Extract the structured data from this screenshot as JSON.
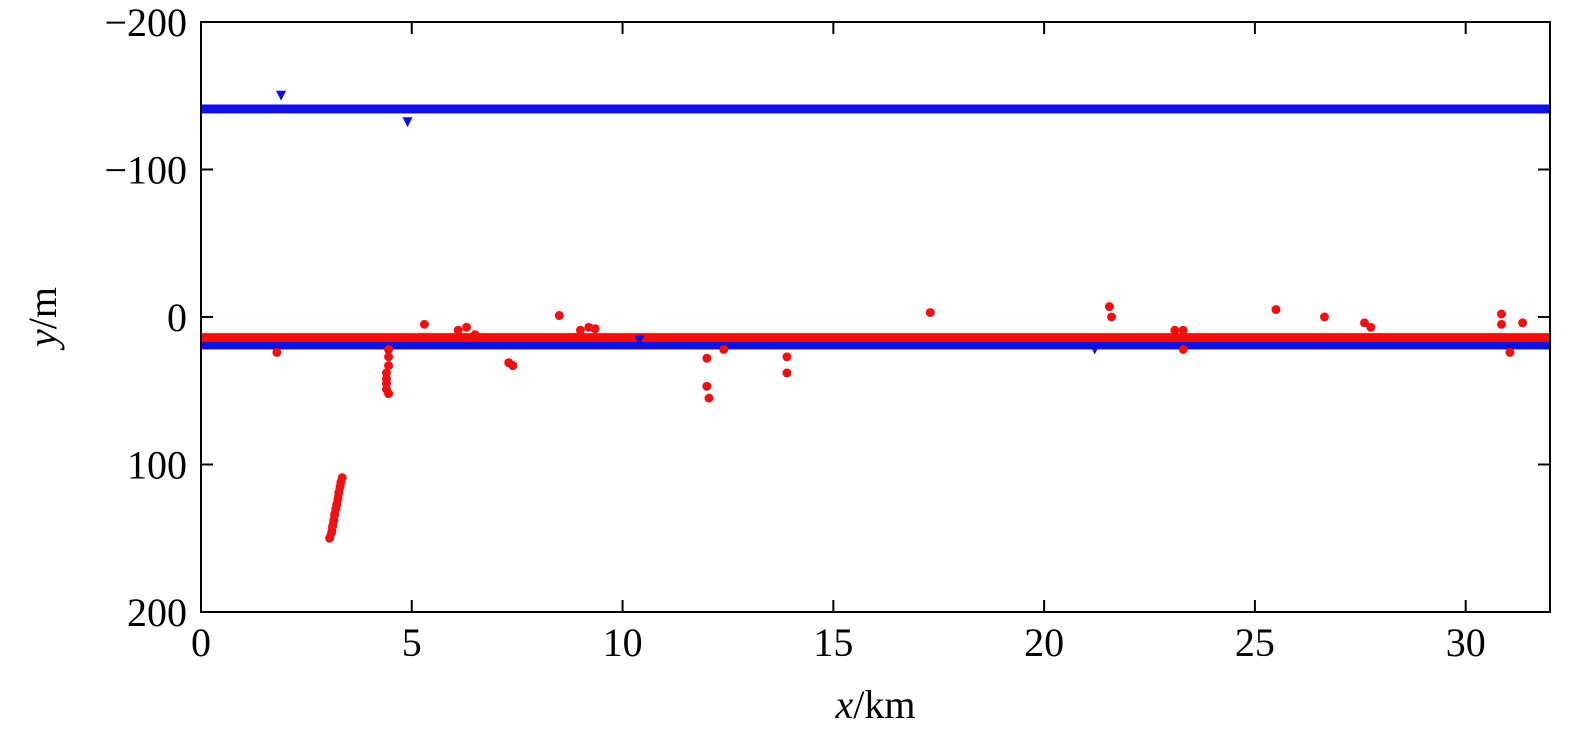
{
  "chart_data": {
    "type": "scatter",
    "xlabel": {
      "var": "x",
      "unit": "/km"
    },
    "ylabel": {
      "var": "y",
      "unit": "/m"
    },
    "xlim": [
      0,
      32
    ],
    "ylim": [
      -200,
      200
    ],
    "y_inverted": true,
    "x_ticks": [
      0,
      5,
      10,
      15,
      20,
      25,
      30
    ],
    "y_ticks": [
      -200,
      -100,
      0,
      100,
      200
    ],
    "y_tick_labels": [
      "−200",
      "−100",
      "0",
      "100",
      "200"
    ],
    "x_tick_labels": [
      "0",
      "5",
      "10",
      "15",
      "20",
      "25",
      "30"
    ],
    "colors": {
      "blue": "#1010e0",
      "red": "#ee1111",
      "axis": "#000000"
    },
    "series": [
      {
        "color": "blue",
        "marker": "triangle-down",
        "bands": [
          {
            "x": [
              0,
              32
            ],
            "y": -141
          },
          {
            "x": [
              0,
              32
            ],
            "y": 19
          }
        ],
        "points": [
          {
            "x": 1.9,
            "y": -150
          },
          {
            "x": 4.9,
            "y": -132
          },
          {
            "x": 21.2,
            "y": 22
          },
          {
            "x": 10.4,
            "y": 16
          }
        ]
      },
      {
        "color": "red",
        "marker": "circle",
        "bands": [
          {
            "x": [
              0,
              32
            ],
            "y": 14
          }
        ],
        "points": [
          {
            "x": 1.8,
            "y": 24
          },
          {
            "x": 4.45,
            "y": 22
          },
          {
            "x": 4.45,
            "y": 27
          },
          {
            "x": 4.45,
            "y": 33
          },
          {
            "x": 4.4,
            "y": 38
          },
          {
            "x": 4.4,
            "y": 42
          },
          {
            "x": 4.4,
            "y": 45
          },
          {
            "x": 4.4,
            "y": 49
          },
          {
            "x": 4.45,
            "y": 52
          },
          {
            "x": 5.3,
            "y": 5
          },
          {
            "x": 6.1,
            "y": 9
          },
          {
            "x": 6.3,
            "y": 7
          },
          {
            "x": 6.5,
            "y": 12
          },
          {
            "x": 7.3,
            "y": 31
          },
          {
            "x": 7.4,
            "y": 33
          },
          {
            "x": 8.5,
            "y": -1
          },
          {
            "x": 9.0,
            "y": 9
          },
          {
            "x": 9.2,
            "y": 7
          },
          {
            "x": 9.35,
            "y": 8
          },
          {
            "x": 12.0,
            "y": 28
          },
          {
            "x": 12.0,
            "y": 47
          },
          {
            "x": 12.05,
            "y": 55
          },
          {
            "x": 12.4,
            "y": 22
          },
          {
            "x": 13.9,
            "y": 27
          },
          {
            "x": 13.9,
            "y": 38
          },
          {
            "x": 17.3,
            "y": -3
          },
          {
            "x": 21.55,
            "y": -7
          },
          {
            "x": 21.6,
            "y": 0
          },
          {
            "x": 23.1,
            "y": 9
          },
          {
            "x": 23.3,
            "y": 9
          },
          {
            "x": 23.3,
            "y": 22
          },
          {
            "x": 25.5,
            "y": -5
          },
          {
            "x": 26.65,
            "y": 0
          },
          {
            "x": 27.6,
            "y": 4
          },
          {
            "x": 27.75,
            "y": 7
          },
          {
            "x": 30.85,
            "y": -2
          },
          {
            "x": 30.85,
            "y": 5
          },
          {
            "x": 31.05,
            "y": 24
          },
          {
            "x": 31.35,
            "y": 4
          }
        ],
        "diagonal_run": [
          {
            "x": 3.05,
            "y": 150
          },
          {
            "x": 3.1,
            "y": 146
          },
          {
            "x": 3.12,
            "y": 142
          },
          {
            "x": 3.15,
            "y": 138
          },
          {
            "x": 3.17,
            "y": 134
          },
          {
            "x": 3.2,
            "y": 130
          },
          {
            "x": 3.22,
            "y": 127
          },
          {
            "x": 3.25,
            "y": 123
          },
          {
            "x": 3.27,
            "y": 119
          },
          {
            "x": 3.3,
            "y": 115
          },
          {
            "x": 3.32,
            "y": 112
          },
          {
            "x": 3.35,
            "y": 109
          }
        ]
      }
    ]
  }
}
